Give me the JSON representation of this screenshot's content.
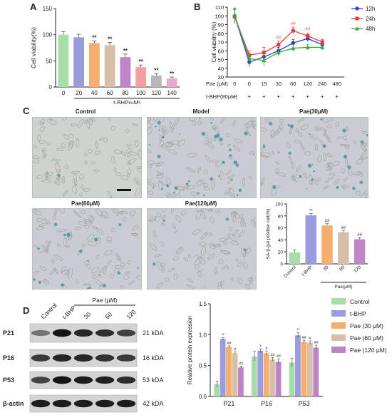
{
  "panels": {
    "A": {
      "letter": "A"
    },
    "B": {
      "letter": "B"
    },
    "C": {
      "letter": "C"
    },
    "D": {
      "letter": "D"
    }
  },
  "chart_data": [
    {
      "id": "A",
      "type": "bar",
      "ylabel": "Cell viability(%)",
      "xlabel": "t-BHP(μM)",
      "categories": [
        "0",
        "20",
        "40",
        "60",
        "80",
        "100",
        "120",
        "140"
      ],
      "values": [
        100,
        95,
        84,
        80,
        57,
        38,
        22,
        16
      ],
      "errors": [
        6,
        6,
        4,
        5,
        6,
        4,
        3,
        3
      ],
      "significance": [
        "",
        "",
        "**",
        "**",
        "**",
        "**",
        "**",
        "**"
      ],
      "colors": [
        "#a8dca8",
        "#9b9be0",
        "#f4ae6e",
        "#d8c0a8",
        "#c084c8",
        "#f4a0a0",
        "#b8b8b8",
        "#e8a8c8"
      ],
      "yticks": [
        "0",
        "50",
        "100",
        "150"
      ],
      "ylim": [
        0,
        150
      ]
    },
    {
      "id": "B",
      "type": "line",
      "ylabel": "Cell viability (%)",
      "categories": [
        "0",
        "0",
        "15",
        "30",
        "60",
        "120",
        "240",
        "480"
      ],
      "row1_label": "Pae (μM)",
      "row2_label": "t-BHP(80μM)",
      "row2": [
        "−",
        "+",
        "+",
        "+",
        "+",
        "+",
        "+",
        "+"
      ],
      "yticks": [
        "30",
        "40",
        "50",
        "60",
        "70",
        "80",
        "90",
        "100",
        "110"
      ],
      "ylim": [
        30,
        110
      ],
      "series": [
        {
          "name": "12h",
          "color": "#2b3bcf",
          "marker": "circle",
          "values": [
            100,
            47,
            53,
            60,
            69,
            74,
            67,
            null
          ]
        },
        {
          "name": "24h",
          "color": "#e83a3a",
          "marker": "square",
          "values": [
            99,
            55,
            58,
            67,
            83,
            77,
            70,
            null
          ]
        },
        {
          "name": "48h",
          "color": "#3aa93a",
          "marker": "triangle",
          "values": [
            101,
            51,
            49,
            58,
            63,
            64,
            64,
            null
          ]
        }
      ],
      "errors": [
        8,
        5,
        6,
        4,
        4,
        3,
        3,
        null
      ],
      "annotations": [
        {
          "index": 3,
          "text": "##"
        },
        {
          "index": 4,
          "text": "##"
        },
        {
          "index": 5,
          "text": "##"
        }
      ]
    },
    {
      "id": "C-inset",
      "type": "bar",
      "ylabel": "SA-β-gal positive cell(%)",
      "categories": [
        "Control",
        "t-BHP",
        "30",
        "60",
        "120"
      ],
      "group_label": "Pae(μM)",
      "values": [
        19,
        81,
        64,
        53,
        41
      ],
      "errors": [
        4,
        3,
        3,
        3,
        3
      ],
      "significance": [
        "",
        "**",
        "##",
        "##",
        "##"
      ],
      "colors": [
        "#a8dca8",
        "#9b9be0",
        "#f4ae6e",
        "#d8c0a8",
        "#c084c8"
      ],
      "yticks": [
        "0",
        "20",
        "40",
        "60",
        "80",
        "100"
      ],
      "ylim": [
        0,
        100
      ]
    },
    {
      "id": "D",
      "type": "bar",
      "ylabel": "Relative protein expression",
      "categories": [
        "P21",
        "P16",
        "P53"
      ],
      "yticks": [
        "0.0",
        "0.5",
        "1.0",
        "1.5"
      ],
      "ylim": [
        0,
        1.5
      ],
      "series": [
        {
          "name": "Control",
          "color": "#a8dca8",
          "values": [
            0.2,
            0.65,
            0.55
          ],
          "errors": [
            0.05,
            0.08,
            0.07
          ],
          "sig": [
            "",
            "",
            ""
          ]
        },
        {
          "name": "t-BHP",
          "color": "#9b9be0",
          "values": [
            0.93,
            0.74,
            0.99
          ],
          "errors": [
            0.02,
            0.03,
            0.04
          ],
          "sig": [
            "**",
            "*",
            "**"
          ]
        },
        {
          "name": "Pae (30 μM)",
          "color": "#f4ae6e",
          "values": [
            0.8,
            0.7,
            0.88
          ],
          "errors": [
            0.02,
            0.03,
            0.03
          ],
          "sig": [
            "##",
            "#",
            "##"
          ]
        },
        {
          "name": "Pae (60 μM)",
          "color": "#d8c0a8",
          "values": [
            0.7,
            0.6,
            0.87
          ],
          "errors": [
            0.02,
            0.03,
            0.03
          ],
          "sig": [
            "#",
            "##",
            "#"
          ]
        },
        {
          "name": "Pae (120 μM)",
          "color": "#c084c8",
          "values": [
            0.47,
            0.56,
            0.79
          ],
          "errors": [
            0.02,
            0.05,
            0.04
          ],
          "sig": [
            "##",
            "##",
            "##"
          ]
        }
      ]
    }
  ],
  "micrographs": [
    {
      "title": "Control",
      "stain_density": 0.05
    },
    {
      "title": "Model",
      "stain_density": 0.8
    },
    {
      "title": "Pae(30μM)",
      "stain_density": 0.55
    },
    {
      "title": "Pae(60μM)",
      "stain_density": 0.35
    },
    {
      "title": "Pae(120μM)",
      "stain_density": 0.12
    }
  ],
  "western": {
    "lanes": [
      "Control",
      "t-BHP",
      "30",
      "60",
      "120"
    ],
    "group_label": "Pae (μM)",
    "rows": [
      {
        "protein": "P21",
        "kda": "21 kDA",
        "intensity": [
          0.45,
          0.95,
          0.85,
          0.8,
          0.7
        ]
      },
      {
        "protein": "P16",
        "kda": "16 kDA",
        "intensity": [
          0.75,
          0.85,
          0.85,
          0.8,
          0.75
        ]
      },
      {
        "protein": "P53",
        "kda": "53 kDA",
        "intensity": [
          0.7,
          0.95,
          0.9,
          0.88,
          0.82
        ]
      },
      {
        "protein": "β-actin",
        "kda": "42 kDA",
        "intensity": [
          0.9,
          0.9,
          0.9,
          0.9,
          0.9
        ]
      }
    ]
  }
}
